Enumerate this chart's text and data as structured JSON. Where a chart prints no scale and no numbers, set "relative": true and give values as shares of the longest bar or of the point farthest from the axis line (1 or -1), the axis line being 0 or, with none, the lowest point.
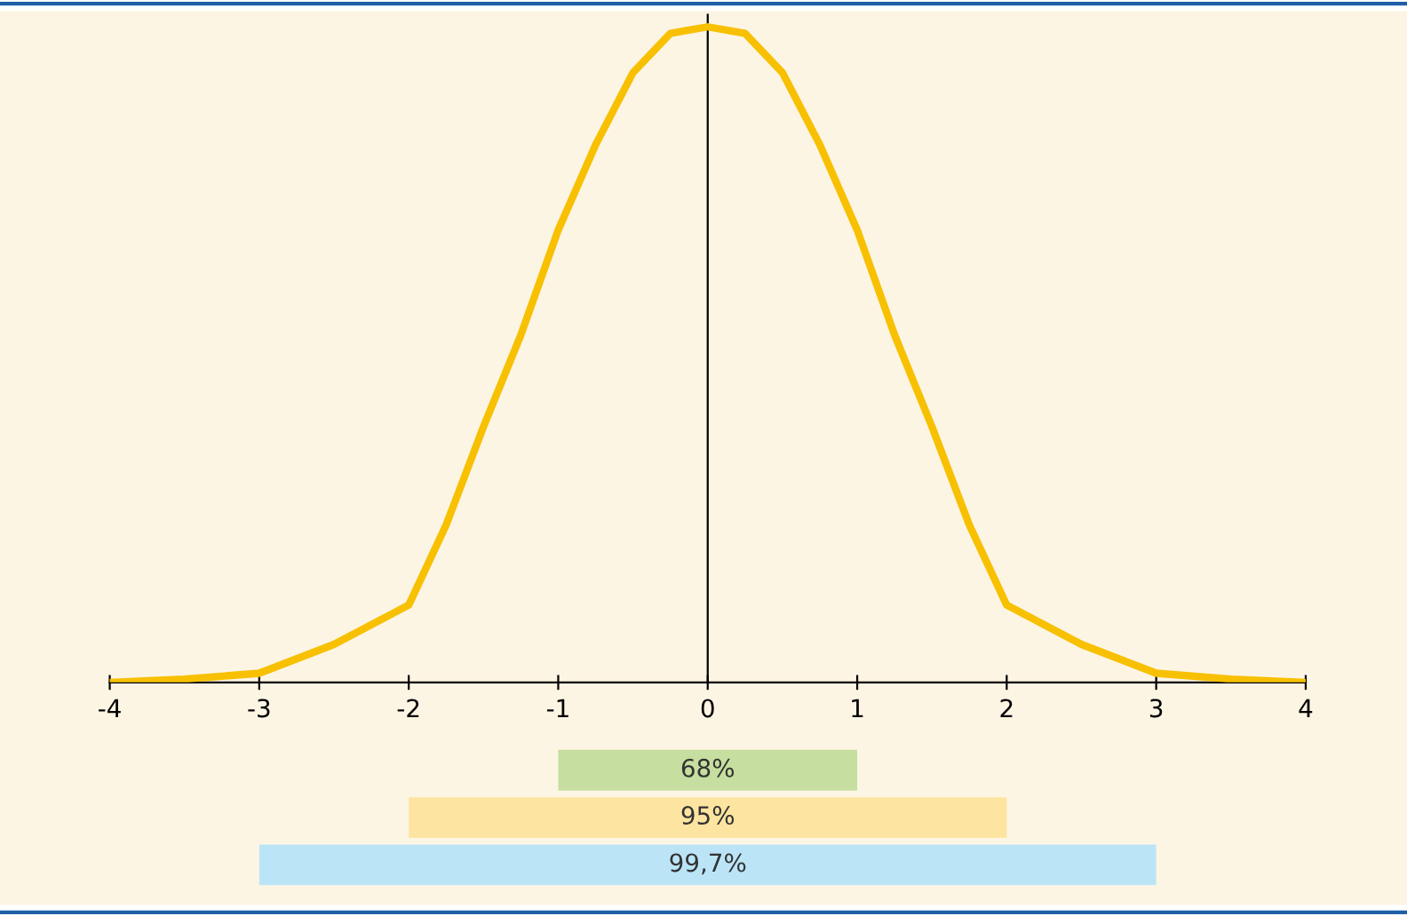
{
  "chart_data": [
    {
      "type": "line",
      "relative": true,
      "x": [
        -4,
        -3.5,
        -3,
        -2.5,
        -2,
        -1.75,
        -1.5,
        -1.25,
        -1,
        -0.75,
        -0.5,
        -0.25,
        0,
        0.25,
        0.5,
        0.75,
        1,
        1.25,
        1.5,
        1.75,
        2,
        2.5,
        3,
        3.5,
        4
      ],
      "series": [
        {
          "color": "#f7c000",
          "values": [
            0,
            0.005,
            0.014,
            0.058,
            0.118,
            0.24,
            0.39,
            0.53,
            0.69,
            0.82,
            0.93,
            0.99,
            1,
            0.99,
            0.93,
            0.82,
            0.69,
            0.53,
            0.39,
            0.24,
            0.118,
            0.058,
            0.014,
            0.005,
            0
          ]
        }
      ],
      "xlim": [
        -4,
        4
      ],
      "xticks": [
        -4,
        -3,
        -2,
        -1,
        0,
        1,
        2,
        3,
        4
      ],
      "grid": false,
      "legend": false,
      "marker": "none",
      "line_style": "solid",
      "ref_lines": [
        {
          "axis": "x",
          "value": 0,
          "color": "#000000"
        }
      ]
    },
    {
      "type": "bar",
      "orientation": "horizontal",
      "categories": [
        null,
        null,
        null
      ],
      "base": [
        -1,
        -2,
        -3
      ],
      "values": [
        2,
        4,
        6
      ],
      "colors": [
        "#c6dfa0",
        "#fde4a0",
        "#bbe5f7"
      ],
      "annotations": [
        "68%",
        "95%",
        "99,7%"
      ],
      "xlim": [
        -4,
        4
      ],
      "tick_labels": false,
      "grid": false,
      "legend": false
    }
  ]
}
